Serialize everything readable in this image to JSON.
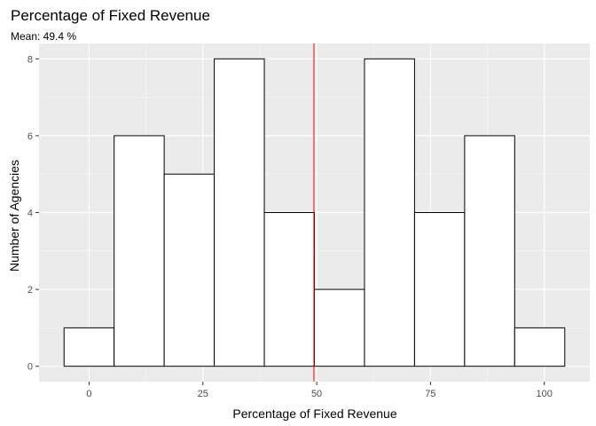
{
  "chart_data": {
    "type": "bar",
    "title": "Percentage of Fixed Revenue",
    "subtitle": "Mean: 49.4 %",
    "xlabel": "Percentage of Fixed Revenue",
    "ylabel": "Number of Agencies",
    "bins": [
      {
        "x0": -5.5,
        "x1": 5.5,
        "count": 1
      },
      {
        "x0": 5.5,
        "x1": 16.5,
        "count": 6
      },
      {
        "x0": 16.5,
        "x1": 27.5,
        "count": 5
      },
      {
        "x0": 27.5,
        "x1": 38.5,
        "count": 8
      },
      {
        "x0": 38.5,
        "x1": 49.5,
        "count": 4
      },
      {
        "x0": 49.5,
        "x1": 60.5,
        "count": 2
      },
      {
        "x0": 60.5,
        "x1": 71.5,
        "count": 8
      },
      {
        "x0": 71.5,
        "x1": 82.5,
        "count": 4
      },
      {
        "x0": 82.5,
        "x1": 93.5,
        "count": 6
      },
      {
        "x0": 93.5,
        "x1": 104.5,
        "count": 1
      }
    ],
    "mean_line": 49.4,
    "xlim": [
      -11,
      110
    ],
    "ylim": [
      -0.4,
      8.4
    ],
    "x_ticks": [
      0,
      25,
      50,
      75,
      100
    ],
    "y_ticks": [
      0,
      2,
      4,
      6,
      8
    ],
    "x_tick_labels": [
      "0",
      "25",
      "50",
      "75",
      "100"
    ],
    "y_tick_labels": [
      "0",
      "2",
      "4",
      "6",
      "8"
    ],
    "grid": true,
    "colors": {
      "panel": "#ebebeb",
      "grid_major": "#ffffff",
      "bar_fill": "#ffffff",
      "bar_stroke": "#000000",
      "mean_line": "#ff0000"
    }
  }
}
